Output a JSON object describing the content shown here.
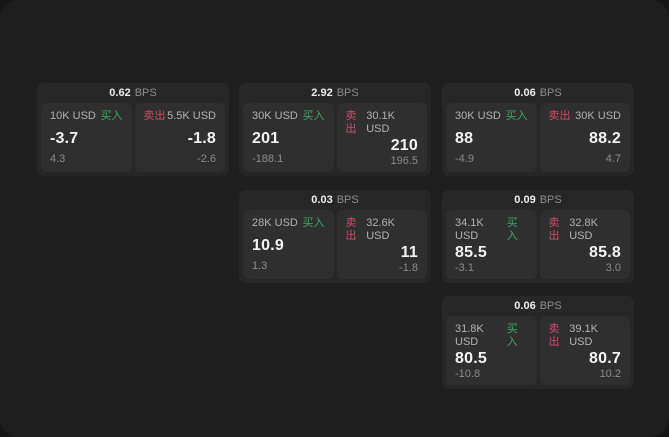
{
  "labels": {
    "buy": "买入",
    "sell": "卖出",
    "bps_unit": "BPS"
  },
  "colors": {
    "buy_green": "#3cab61",
    "sell_red": "#d14b66",
    "window_bg": "#1e1e1f",
    "card_bg": "#272728",
    "tile_bg": "#2f2f30"
  },
  "cards": [
    {
      "bps": "0.62",
      "buy": {
        "amount": "10K USD",
        "price": "-3.7",
        "change": "4.3"
      },
      "sell": {
        "amount": "5.5K USD",
        "price": "-1.8",
        "change": "-2.6"
      }
    },
    {
      "bps": "2.92",
      "buy": {
        "amount": "30K USD",
        "price": "201",
        "change": "-188.1"
      },
      "sell": {
        "amount": "30.1K USD",
        "price": "210",
        "change": "196.5"
      }
    },
    {
      "bps": "0.06",
      "buy": {
        "amount": "30K USD",
        "price": "88",
        "change": "-4.9"
      },
      "sell": {
        "amount": "30K USD",
        "price": "88.2",
        "change": "4.7"
      }
    },
    {
      "bps": "0.03",
      "buy": {
        "amount": "28K USD",
        "price": "10.9",
        "change": "1.3"
      },
      "sell": {
        "amount": "32.6K USD",
        "price": "11",
        "change": "-1.8"
      }
    },
    {
      "bps": "0.09",
      "buy": {
        "amount": "34.1K USD",
        "price": "85.5",
        "change": "-3.1"
      },
      "sell": {
        "amount": "32.8K USD",
        "price": "85.8",
        "change": "3.0"
      }
    },
    {
      "bps": "0.06",
      "buy": {
        "amount": "31.8K USD",
        "price": "80.5",
        "change": "-10.8"
      },
      "sell": {
        "amount": "39.1K USD",
        "price": "80.7",
        "change": "10.2"
      }
    }
  ]
}
